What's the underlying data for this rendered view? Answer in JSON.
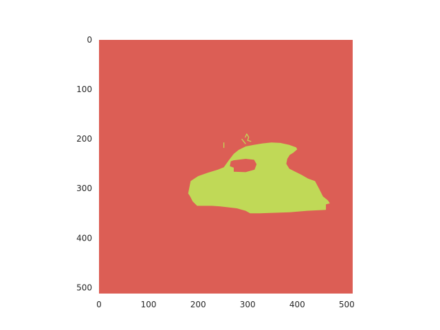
{
  "chart_data": {
    "type": "heatmap",
    "title": "",
    "xlabel": "",
    "ylabel": "",
    "xlim": [
      0,
      512
    ],
    "ylim": [
      512,
      0
    ],
    "x_ticks": [
      0,
      100,
      200,
      300,
      400,
      500
    ],
    "y_ticks": [
      0,
      100,
      200,
      300,
      400,
      500
    ],
    "grid": false,
    "colors": {
      "background": "#dc5e55",
      "foreground": "#c0d957"
    },
    "classes": [
      {
        "value": 0,
        "color": "#dc5e55"
      },
      {
        "value": 1,
        "color": "#c0d957"
      }
    ],
    "mask_regions": [
      {
        "value": 1,
        "polygon": [
          [
            180,
            310
          ],
          [
            185,
            285
          ],
          [
            200,
            275
          ],
          [
            220,
            268
          ],
          [
            240,
            262
          ],
          [
            252,
            257
          ],
          [
            262,
            243
          ],
          [
            272,
            230
          ],
          [
            282,
            222
          ],
          [
            296,
            215
          ],
          [
            312,
            212
          ],
          [
            330,
            209
          ],
          [
            348,
            207
          ],
          [
            366,
            208
          ],
          [
            384,
            212
          ],
          [
            398,
            217
          ],
          [
            400,
            221
          ],
          [
            392,
            228
          ],
          [
            385,
            232
          ],
          [
            380,
            240
          ],
          [
            378,
            250
          ],
          [
            384,
            260
          ],
          [
            396,
            266
          ],
          [
            408,
            272
          ],
          [
            422,
            280
          ],
          [
            436,
            285
          ],
          [
            444,
            300
          ],
          [
            452,
            316
          ],
          [
            462,
            324
          ],
          [
            466,
            330
          ],
          [
            458,
            332
          ],
          [
            458,
            343
          ],
          [
            420,
            345
          ],
          [
            385,
            348
          ],
          [
            355,
            349
          ],
          [
            325,
            350
          ],
          [
            305,
            350
          ],
          [
            296,
            345
          ],
          [
            278,
            340
          ],
          [
            245,
            336
          ],
          [
            228,
            335
          ],
          [
            210,
            335
          ],
          [
            198,
            335
          ],
          [
            189,
            326
          ],
          [
            184,
            316
          ]
        ]
      }
    ],
    "holes": [
      {
        "value": 0,
        "polygon": [
          [
            272,
            243
          ],
          [
            296,
            240
          ],
          [
            313,
            242
          ],
          [
            318,
            251
          ],
          [
            314,
            262
          ],
          [
            296,
            267
          ],
          [
            272,
            266
          ],
          [
            272,
            258
          ],
          [
            264,
            255
          ],
          [
            266,
            245
          ]
        ]
      }
    ],
    "fragments": [
      {
        "value": 1,
        "polyline": [
          [
            252,
            207
          ],
          [
            252,
            218
          ]
        ]
      },
      {
        "value": 1,
        "polyline": [
          [
            295,
            197
          ],
          [
            298,
            190
          ],
          [
            302,
            196
          ],
          [
            300,
            203
          ],
          [
            307,
            205
          ]
        ]
      },
      {
        "value": 1,
        "polyline": [
          [
            288,
            200
          ],
          [
            292,
            205
          ],
          [
            296,
            210
          ]
        ]
      },
      {
        "value": 1,
        "polyline": [
          [
            248,
            262
          ],
          [
            238,
            267
          ],
          [
            226,
            275
          ],
          [
            216,
            289
          ],
          [
            213,
            298
          ]
        ]
      },
      {
        "value": 1,
        "polyline": [
          [
            340,
            251
          ],
          [
            348,
            261
          ],
          [
            356,
            268
          ]
        ]
      }
    ]
  }
}
